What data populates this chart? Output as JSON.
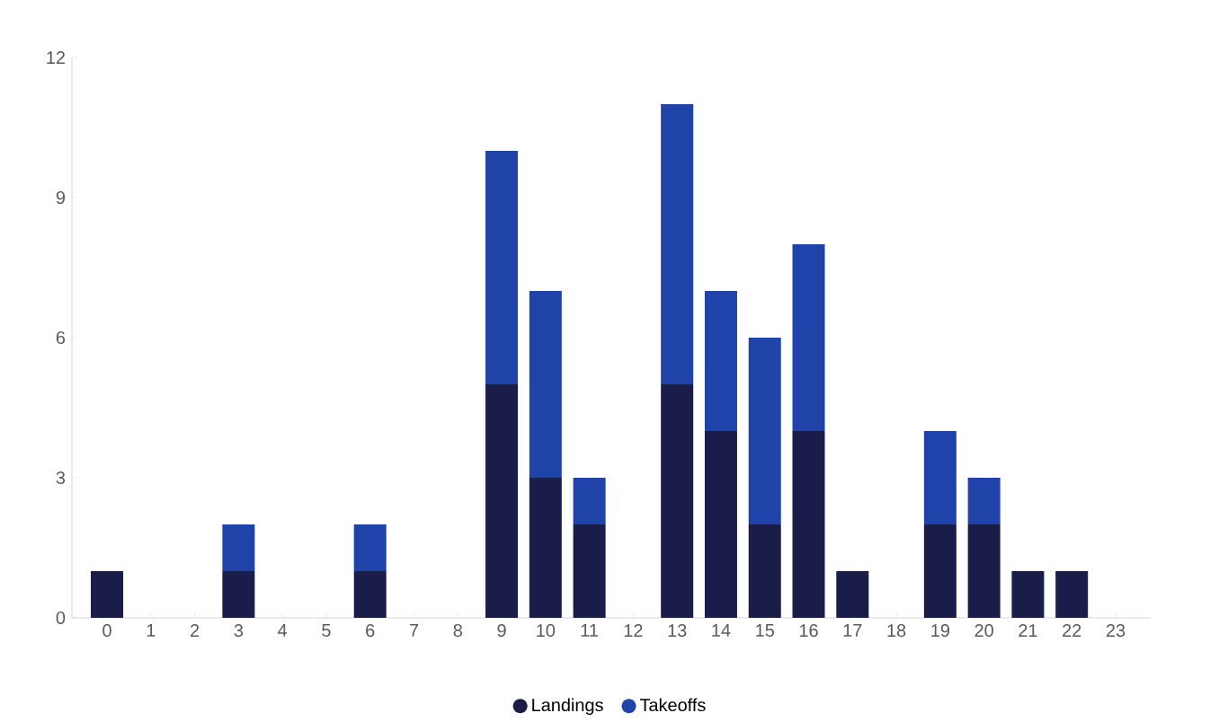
{
  "chart_data": {
    "type": "bar",
    "stacked": true,
    "categories": [
      "0",
      "1",
      "2",
      "3",
      "4",
      "5",
      "6",
      "7",
      "8",
      "9",
      "10",
      "11",
      "12",
      "13",
      "14",
      "15",
      "16",
      "17",
      "18",
      "19",
      "20",
      "21",
      "22",
      "23"
    ],
    "series": [
      {
        "name": "Landings",
        "color": "#1a1c4a",
        "values": [
          1,
          0,
          0,
          1,
          0,
          0,
          1,
          0,
          0,
          5,
          3,
          2,
          0,
          5,
          4,
          2,
          4,
          1,
          0,
          2,
          2,
          1,
          1,
          0
        ]
      },
      {
        "name": "Takeoffs",
        "color": "#1f43a8",
        "values": [
          0,
          0,
          0,
          1,
          0,
          0,
          1,
          0,
          0,
          5,
          4,
          1,
          0,
          6,
          3,
          4,
          4,
          0,
          0,
          2,
          1,
          0,
          0,
          0
        ]
      }
    ],
    "ylim": [
      0,
      12
    ],
    "yticks": [
      0,
      3,
      6,
      9,
      12
    ],
    "grid": false,
    "legend": "bottom"
  }
}
